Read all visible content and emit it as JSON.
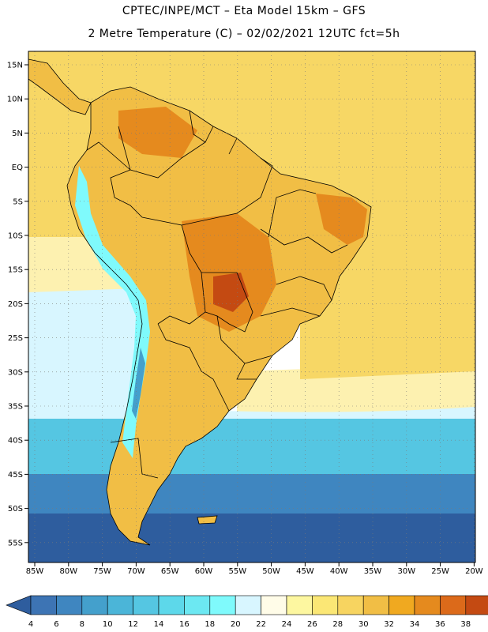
{
  "title_line1": "CPTEC/INPE/MCT –  Eta Model 15km – GFS",
  "title_line2": "2 Metre Temperature (C) – 02/02/2021 12UTC fct=5h",
  "lat_labels": [
    "15N",
    "10N",
    "5N",
    "EQ",
    "5S",
    "10S",
    "15S",
    "20S",
    "25S",
    "30S",
    "35S",
    "40S",
    "45S",
    "50S",
    "55S"
  ],
  "lon_labels": [
    "85W",
    "80W",
    "75W",
    "70W",
    "65W",
    "60W",
    "55W",
    "50W",
    "45W",
    "40W",
    "35W",
    "30W",
    "25W",
    "20W"
  ],
  "colorbar": {
    "labels": [
      "4",
      "6",
      "8",
      "10",
      "12",
      "14",
      "16",
      "18",
      "20",
      "22",
      "24",
      "26",
      "28",
      "30",
      "32",
      "34",
      "36",
      "38"
    ],
    "colors": [
      "#3d74b4",
      "#3f86c0",
      "#44a0cc",
      "#4bb5d8",
      "#55c6e2",
      "#5dd8ea",
      "#6ce8f2",
      "#7ffafc",
      "#d8f6ff",
      "#fffce8",
      "#fdf7a0",
      "#fbe775",
      "#f7d460",
      "#f1be45",
      "#f0a920",
      "#e58a1e",
      "#dc6a1a",
      "#c44a12"
    ],
    "low_color": "#2e5d9e",
    "high_color": "#a8361a"
  },
  "map_colors": {
    "ocean_warm": "#f7d765",
    "ocean_mid": "#fdf1b0",
    "ocean_cool": "#d8f6ff",
    "ocean_cold": "#55c6e2",
    "ocean_colder": "#3f86c0",
    "ocean_coldest": "#2e5d9e",
    "land": "#f1be45",
    "land_hot": "#e58a1e",
    "land_hottest": "#c44a12",
    "andes": "#7ffafc",
    "andes_cold": "#44a0cc",
    "grid": "#7a7a7a",
    "border": "#000000"
  }
}
